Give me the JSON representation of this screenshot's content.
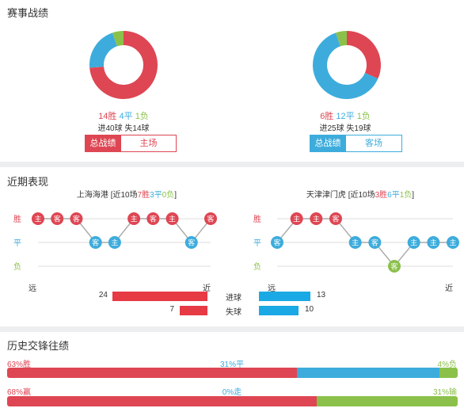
{
  "colors": {
    "win": "#de4653",
    "draw": "#3dacdc",
    "loss": "#8bc14a",
    "grid": "#dddddd"
  },
  "record": {
    "title": "赛事战绩",
    "left": {
      "win": "14胜",
      "draw": "4平",
      "loss": "1负",
      "goals": "进40球 失14球",
      "shares": [
        14,
        4,
        1
      ],
      "tabs": [
        {
          "label": "总战绩",
          "active": true
        },
        {
          "label": "主场",
          "active": false
        }
      ]
    },
    "right": {
      "win": "6胜",
      "draw": "12平",
      "loss": "1负",
      "goals": "进25球 失19球",
      "shares": [
        6,
        12,
        1
      ],
      "tabs": [
        {
          "label": "总战绩",
          "active": true
        },
        {
          "label": "客场",
          "active": false
        }
      ]
    }
  },
  "recent": {
    "title": "近期表现",
    "row_labels": [
      "胜",
      "平",
      "负"
    ],
    "far": "远",
    "near": "近",
    "left": {
      "team": "上海海港",
      "pre": " [近10场",
      "w": "7胜",
      "d": "3平",
      "l": "0负",
      "post": "]",
      "results": [
        {
          "r": "W",
          "v": "主"
        },
        {
          "r": "W",
          "v": "客"
        },
        {
          "r": "W",
          "v": "客"
        },
        {
          "r": "D",
          "v": "客"
        },
        {
          "r": "D",
          "v": "主"
        },
        {
          "r": "W",
          "v": "主"
        },
        {
          "r": "W",
          "v": "客"
        },
        {
          "r": "W",
          "v": "主"
        },
        {
          "r": "D",
          "v": "客"
        },
        {
          "r": "W",
          "v": "客"
        }
      ]
    },
    "right": {
      "team": "天津津门虎",
      "pre": " [近10场",
      "w": "3胜",
      "d": "6平",
      "l": "1负",
      "post": "]",
      "results": [
        {
          "r": "D",
          "v": "客"
        },
        {
          "r": "W",
          "v": "主"
        },
        {
          "r": "W",
          "v": "主"
        },
        {
          "r": "W",
          "v": "客"
        },
        {
          "r": "D",
          "v": "主"
        },
        {
          "r": "D",
          "v": "客"
        },
        {
          "r": "L",
          "v": "客"
        },
        {
          "r": "D",
          "v": "主"
        },
        {
          "r": "D",
          "v": "主"
        },
        {
          "r": "D",
          "v": "主"
        }
      ]
    },
    "goals": {
      "scored_label": "进球",
      "conceded_label": "失球",
      "left_scored": 24,
      "left_conceded": 7,
      "right_scored": 13,
      "right_conceded": 10
    }
  },
  "h2h": {
    "title": "历史交锋往绩",
    "row1": {
      "a": "63%胜",
      "b": "31%平",
      "c": "4%负",
      "values": [
        63,
        31,
        4
      ]
    },
    "row2": {
      "a": "68%赢",
      "b": "0%走",
      "c": "31%输",
      "values": [
        68,
        0,
        31
      ]
    }
  }
}
